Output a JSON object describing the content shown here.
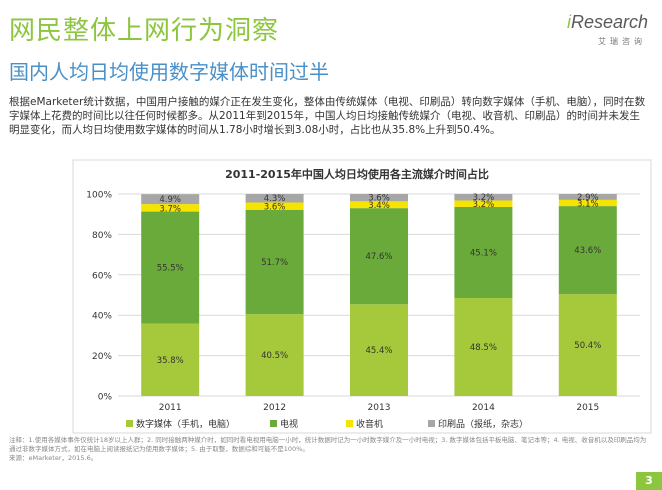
{
  "header": {
    "title": "网民整体上网行为洞察",
    "subtitle": "国内人均日均使用数字媒体时间过半"
  },
  "logo": {
    "brand_i": "i",
    "brand_rest": "Research",
    "cn": "艾瑞咨询"
  },
  "intro": "根据eMarketer统计数据，中国用户接触的媒介正在发生变化，整体由传统媒体（电视、印刷品）转向数字媒体（手机、电脑），同时在数字媒体上花费的时间比以往任何时候都多。从2011年到2015年，中国人均日均接触传统媒介（电视、收音机、印刷品）的时间并未发生明显变化，而人均日均使用数字媒体的时间从1.78小时增长到3.08小时，占比也从35.8%上升到50.4%。",
  "chart_data": {
    "type": "bar",
    "stacked": true,
    "title": "2011-2015年中国人均日均使用各主流媒介时间占比",
    "categories": [
      "2011",
      "2012",
      "2013",
      "2014",
      "2015"
    ],
    "y_ticks": [
      "0%",
      "20%",
      "40%",
      "60%",
      "80%",
      "100%"
    ],
    "ylim": [
      0,
      100
    ],
    "series": [
      {
        "name": "数字媒体（手机，电脑）",
        "values": [
          35.8,
          40.5,
          45.4,
          48.5,
          50.4
        ],
        "labels": [
          "35.8%",
          "40.5%",
          "45.4%",
          "48.5%",
          "50.4%"
        ],
        "color": "#a5c93a"
      },
      {
        "name": "电视",
        "values": [
          55.5,
          51.7,
          47.6,
          45.1,
          43.6
        ],
        "labels": [
          "55.5%",
          "51.7%",
          "47.6%",
          "45.1%",
          "43.6%"
        ],
        "color": "#6aaa3a"
      },
      {
        "name": "收音机",
        "values": [
          3.7,
          3.6,
          3.4,
          3.2,
          3.1
        ],
        "labels": [
          "3.7%",
          "3.6%",
          "3.4%",
          "3.2%",
          "3.1%"
        ],
        "color": "#f5e300"
      },
      {
        "name": "印刷品（报纸，杂志）",
        "values": [
          4.9,
          4.3,
          3.6,
          3.2,
          2.9
        ],
        "labels": [
          "4.9%",
          "4.3%",
          "3.6%",
          "3.2%",
          "2.9%"
        ],
        "color": "#a6a6a6"
      }
    ],
    "grid": true,
    "legend": "bottom"
  },
  "footer": {
    "note": "注释：1.使用各媒体事件仅统计18岁以上人群；2. 同时接触两种媒介时，如同时看电视用电脑一小时，统计数据时记为一小时数字媒介及一小时电视；3. 数字媒体包括平板电脑、笔记本等；4. 电视、收音机以及印刷品均为通过非数字媒体方式，如在电脑上阅读报纸记为使用数字媒体；5. 由于取整，数据综和可能不是100%。",
    "source": "来源：eMarketer，2015.6。",
    "page": "3"
  }
}
